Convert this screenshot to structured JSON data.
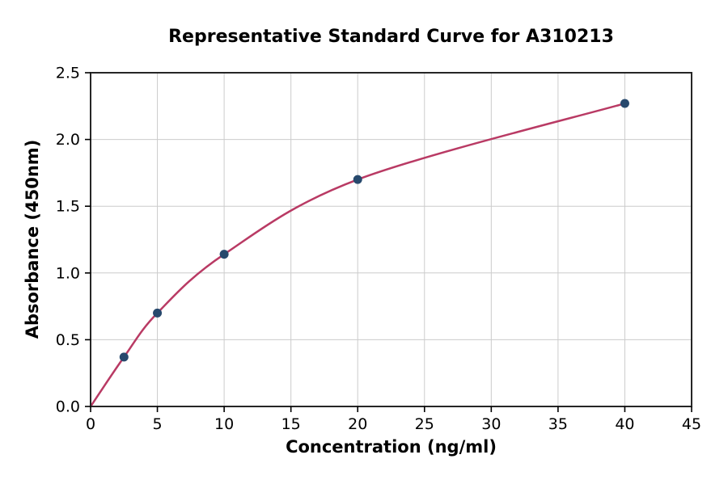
{
  "chart_data": {
    "type": "scatter",
    "title": "Representative Standard Curve for A310213",
    "xlabel": "Concentration (ng/ml)",
    "ylabel": "Absorbance (450nm)",
    "xlim": [
      0,
      45
    ],
    "ylim": [
      0.0,
      2.5
    ],
    "grid": true,
    "legend": "none",
    "x_ticks": [
      0,
      5,
      10,
      15,
      20,
      25,
      30,
      35,
      40,
      45
    ],
    "x_tick_labels": [
      "0",
      "5",
      "10",
      "15",
      "20",
      "25",
      "30",
      "35",
      "40",
      "45"
    ],
    "y_ticks": [
      0.0,
      0.5,
      1.0,
      1.5,
      2.0,
      2.5
    ],
    "y_tick_labels": [
      "0.0",
      "0.5",
      "1.0",
      "1.5",
      "2.0",
      "2.5"
    ],
    "points": [
      {
        "x": 2.5,
        "y": 0.37
      },
      {
        "x": 5,
        "y": 0.7
      },
      {
        "x": 10,
        "y": 1.14
      },
      {
        "x": 20,
        "y": 1.7
      },
      {
        "x": 40,
        "y": 2.27
      }
    ],
    "curve_anchor_points": [
      {
        "x": 0,
        "y": 0.0
      },
      {
        "x": 2.5,
        "y": 0.37
      },
      {
        "x": 5,
        "y": 0.7
      },
      {
        "x": 10,
        "y": 1.14
      },
      {
        "x": 20,
        "y": 1.7
      },
      {
        "x": 40,
        "y": 2.27
      }
    ],
    "colors": {
      "curve": "#b93a64",
      "marker": "#27496d",
      "grid": "#cccccc",
      "spine": "#262626",
      "tick": "#000000",
      "background": "#ffffff",
      "text": "#000000"
    }
  }
}
